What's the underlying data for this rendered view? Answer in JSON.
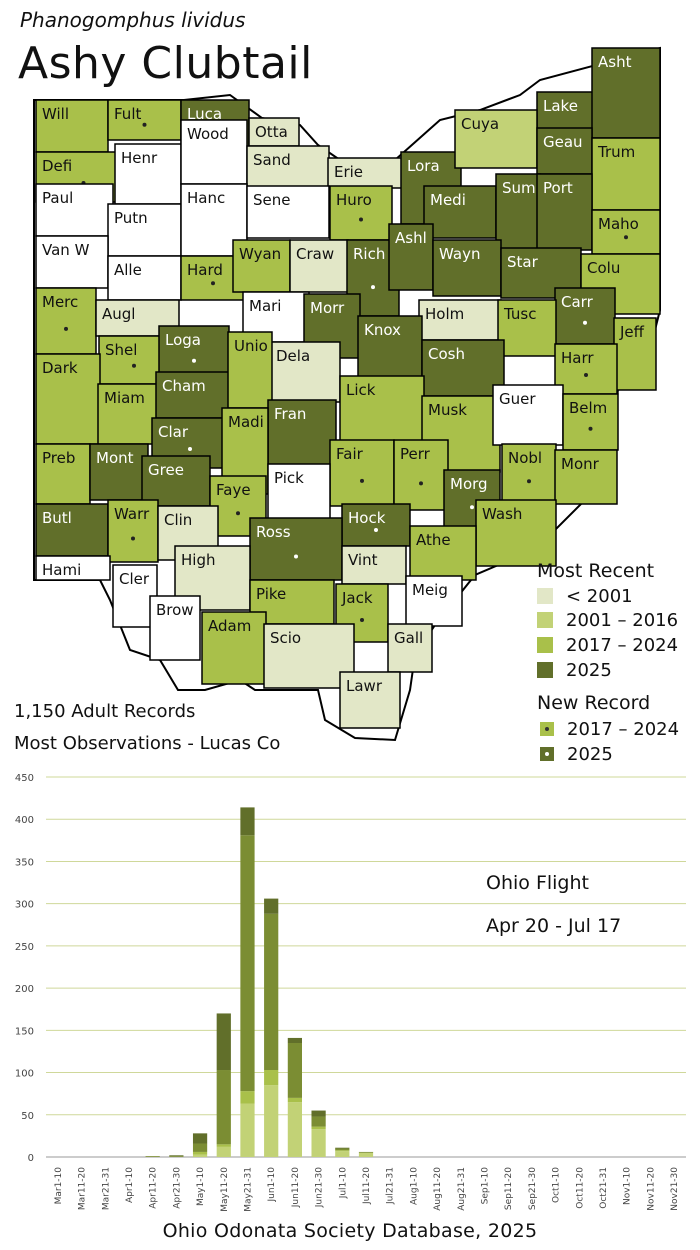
{
  "header": {
    "scientific_name": "Phanogomphus lividus",
    "common_name": "Ashy Clubtail"
  },
  "colors": {
    "pre2001": "#e2e7c7",
    "y2001_2016": "#c2d276",
    "y2017_2024": "#a9c04a",
    "y2025": "#616f2a",
    "none": "#ffffff"
  },
  "legend": {
    "recent_title": "Most Recent",
    "recent_items": [
      "< 2001",
      "2001 – 2016",
      "2017 – 2024",
      "2025"
    ],
    "new_title": "New Record",
    "new_items": [
      "2017 – 2024",
      "2025"
    ]
  },
  "stats": {
    "records": "1,150 Adult Records",
    "most_obs": "Most Observations - Lucas Co"
  },
  "counties": [
    {
      "name": "Will",
      "cat": 2,
      "dot": false
    },
    {
      "name": "Fult",
      "cat": 2,
      "dot": true
    },
    {
      "name": "Luca",
      "cat": 3,
      "dot": false
    },
    {
      "name": "Otta",
      "cat": 0,
      "dot": false
    },
    {
      "name": "Lake",
      "cat": 3,
      "dot": false
    },
    {
      "name": "Asht",
      "cat": 3,
      "dot": false
    },
    {
      "name": "Defi",
      "cat": 2,
      "dot": true
    },
    {
      "name": "Henr",
      "cat": -1,
      "dot": false
    },
    {
      "name": "Wood",
      "cat": -1,
      "dot": false
    },
    {
      "name": "Sand",
      "cat": 0,
      "dot": false
    },
    {
      "name": "Erie",
      "cat": 0,
      "dot": false
    },
    {
      "name": "Lora",
      "cat": 3,
      "dot": true
    },
    {
      "name": "Cuya",
      "cat": 1,
      "dot": false
    },
    {
      "name": "Geau",
      "cat": 3,
      "dot": false
    },
    {
      "name": "Trum",
      "cat": 2,
      "dot": false
    },
    {
      "name": "Paul",
      "cat": -1,
      "dot": false
    },
    {
      "name": "Putn",
      "cat": -1,
      "dot": false
    },
    {
      "name": "Hanc",
      "cat": -1,
      "dot": false
    },
    {
      "name": "Sene",
      "cat": -1,
      "dot": false
    },
    {
      "name": "Huro",
      "cat": 2,
      "dot": true
    },
    {
      "name": "Medi",
      "cat": 3,
      "dot": false
    },
    {
      "name": "Summ",
      "cat": 3,
      "dot": false
    },
    {
      "name": "Port",
      "cat": 3,
      "dot": false
    },
    {
      "name": "Maho",
      "cat": 2,
      "dot": true
    },
    {
      "name": "Van W",
      "cat": -1,
      "dot": false
    },
    {
      "name": "Alle",
      "cat": -1,
      "dot": false
    },
    {
      "name": "Hard",
      "cat": 2,
      "dot": true
    },
    {
      "name": "Wyan",
      "cat": 2,
      "dot": false
    },
    {
      "name": "Craw",
      "cat": 0,
      "dot": false
    },
    {
      "name": "Rich",
      "cat": 3,
      "dot": true
    },
    {
      "name": "Ashl",
      "cat": 3,
      "dot": false
    },
    {
      "name": "Wayn",
      "cat": 3,
      "dot": false
    },
    {
      "name": "Star",
      "cat": 3,
      "dot": false
    },
    {
      "name": "Colu",
      "cat": 2,
      "dot": false
    },
    {
      "name": "Merc",
      "cat": 2,
      "dot": true
    },
    {
      "name": "Augl",
      "cat": 0,
      "dot": false
    },
    {
      "name": "Mari",
      "cat": -1,
      "dot": false
    },
    {
      "name": "Morr",
      "cat": 3,
      "dot": false
    },
    {
      "name": "Holm",
      "cat": 0,
      "dot": false
    },
    {
      "name": "Carr",
      "cat": 3,
      "dot": true
    },
    {
      "name": "Tusc",
      "cat": 2,
      "dot": false
    },
    {
      "name": "Jeff",
      "cat": 2,
      "dot": false
    },
    {
      "name": "Shel",
      "cat": 2,
      "dot": true
    },
    {
      "name": "Loga",
      "cat": 3,
      "dot": true
    },
    {
      "name": "Knox",
      "cat": 3,
      "dot": false
    },
    {
      "name": "Dela",
      "cat": 0,
      "dot": false
    },
    {
      "name": "Cosh",
      "cat": 3,
      "dot": false
    },
    {
      "name": "Harr",
      "cat": 2,
      "dot": true
    },
    {
      "name": "Dark",
      "cat": 2,
      "dot": false
    },
    {
      "name": "Miam",
      "cat": 2,
      "dot": false
    },
    {
      "name": "Cham",
      "cat": 3,
      "dot": false
    },
    {
      "name": "Unio",
      "cat": 2,
      "dot": false
    },
    {
      "name": "Lick",
      "cat": 2,
      "dot": false
    },
    {
      "name": "Musk",
      "cat": 2,
      "dot": false
    },
    {
      "name": "Guer",
      "cat": -1,
      "dot": false
    },
    {
      "name": "Belm",
      "cat": 2,
      "dot": true
    },
    {
      "name": "Clar",
      "cat": 3,
      "dot": true
    },
    {
      "name": "Fran",
      "cat": 3,
      "dot": false
    },
    {
      "name": "Madi",
      "cat": 2,
      "dot": false
    },
    {
      "name": "Preb",
      "cat": 2,
      "dot": false
    },
    {
      "name": "Mont",
      "cat": 3,
      "dot": false
    },
    {
      "name": "Gree",
      "cat": 3,
      "dot": false
    },
    {
      "name": "Fair",
      "cat": 2,
      "dot": true
    },
    {
      "name": "Perr",
      "cat": 2,
      "dot": true
    },
    {
      "name": "Nobl",
      "cat": 2,
      "dot": true
    },
    {
      "name": "Monr",
      "cat": 2,
      "dot": false
    },
    {
      "name": "Faye",
      "cat": 2,
      "dot": true
    },
    {
      "name": "Pick",
      "cat": -1,
      "dot": false
    },
    {
      "name": "Morg",
      "cat": 3,
      "dot": true
    },
    {
      "name": "Butl",
      "cat": 3,
      "dot": false
    },
    {
      "name": "Warr",
      "cat": 2,
      "dot": true
    },
    {
      "name": "Clin",
      "cat": 0,
      "dot": false
    },
    {
      "name": "Hock",
      "cat": 3,
      "dot": true
    },
    {
      "name": "Wash",
      "cat": 2,
      "dot": false
    },
    {
      "name": "Ross",
      "cat": 3,
      "dot": true
    },
    {
      "name": "Athe",
      "cat": 2,
      "dot": false
    },
    {
      "name": "Vint",
      "cat": 0,
      "dot": false
    },
    {
      "name": "High",
      "cat": 0,
      "dot": false
    },
    {
      "name": "Hami",
      "cat": -1,
      "dot": false
    },
    {
      "name": "Cler",
      "cat": -1,
      "dot": false
    },
    {
      "name": "Pike",
      "cat": 2,
      "dot": false
    },
    {
      "name": "Jack",
      "cat": 2,
      "dot": true
    },
    {
      "name": "Meig",
      "cat": -1,
      "dot": false
    },
    {
      "name": "Brow",
      "cat": -1,
      "dot": false
    },
    {
      "name": "Adam",
      "cat": 2,
      "dot": false
    },
    {
      "name": "Scio",
      "cat": 0,
      "dot": false
    },
    {
      "name": "Gall",
      "cat": 0,
      "dot": false
    },
    {
      "name": "Lawr",
      "cat": 0,
      "dot": false
    }
  ],
  "chart_data": {
    "type": "bar",
    "stacked": true,
    "categories": [
      "Mar1-10",
      "Mar11-20",
      "Mar21-31",
      "Apr1-10",
      "Apr11-20",
      "Apr21-30",
      "May1-10",
      "May11-20",
      "May21-31",
      "Jun1-10",
      "Jun11-20",
      "Jun21-30",
      "Jul1-10",
      "Jul11-20",
      "Jul21-31",
      "Aug1-10",
      "Aug11-20",
      "Aug21-31",
      "Sep1-10",
      "Sep11-20",
      "Sep21-30",
      "Oct1-10",
      "Oct11-20",
      "Oct21-31",
      "Nov1-10",
      "Nov11-20",
      "Nov21-30"
    ],
    "series": [
      {
        "values": [
          0,
          0,
          0,
          0,
          0,
          0,
          3,
          12,
          63,
          85,
          65,
          33,
          7,
          5,
          0,
          0,
          0,
          0,
          0,
          0,
          0,
          0,
          0,
          0,
          0,
          0,
          0
        ]
      },
      {
        "values": [
          0,
          0,
          0,
          0,
          0,
          0,
          3,
          3,
          15,
          18,
          5,
          3,
          1,
          0,
          0,
          0,
          0,
          0,
          0,
          0,
          0,
          0,
          0,
          0,
          0,
          0,
          0
        ]
      },
      {
        "values": [
          0,
          0,
          0,
          0,
          1,
          1,
          10,
          88,
          303,
          185,
          65,
          12,
          2,
          1,
          0,
          0,
          0,
          0,
          0,
          0,
          0,
          0,
          0,
          0,
          0,
          0,
          0
        ]
      },
      {
        "values": [
          0,
          0,
          0,
          0,
          0,
          1,
          12,
          67,
          33,
          18,
          6,
          7,
          1,
          0,
          0,
          0,
          0,
          0,
          0,
          0,
          0,
          0,
          0,
          0,
          0,
          0,
          0
        ]
      }
    ],
    "series_colors": [
      "#c2d276",
      "#a9c04a",
      "#7b8d33",
      "#616f2a"
    ],
    "yticks": [
      0,
      50,
      100,
      150,
      200,
      250,
      300,
      350,
      400,
      450
    ],
    "ylim": [
      0,
      450
    ],
    "grid": true,
    "annotations": [
      "Ohio Flight",
      "Apr 20 - Jul 17"
    ]
  },
  "footer": "Ohio Odonata Society Database, 2025"
}
